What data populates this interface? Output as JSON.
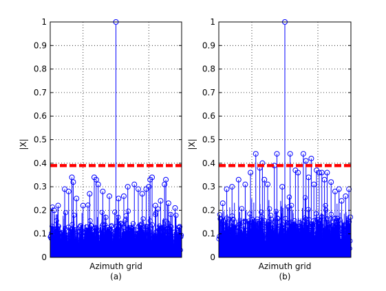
{
  "colors": {
    "stem": "#0000ff",
    "threshold": "#ff0000",
    "axis": "#000000",
    "grid": "#000000"
  },
  "chart_data": [
    {
      "type": "scatter",
      "style": "stem",
      "xlabel": "Azimuth grid",
      "ylabel": "|X|",
      "caption": "(a)",
      "ylim": [
        0,
        1
      ],
      "yticks": [
        "0",
        "0.1",
        "0.2",
        "0.3",
        "0.4",
        "0.5",
        "0.6",
        "0.7",
        "0.8",
        "0.9",
        "1"
      ],
      "grid": true,
      "threshold": 0.39,
      "x_range": [
        0,
        1000
      ],
      "noise_floor": 0.1,
      "peak": {
        "x": 500,
        "y": 1.0
      },
      "stems": [
        {
          "x": 30,
          "y": 0.2
        },
        {
          "x": 60,
          "y": 0.22
        },
        {
          "x": 110,
          "y": 0.29
        },
        {
          "x": 140,
          "y": 0.28
        },
        {
          "x": 165,
          "y": 0.34
        },
        {
          "x": 175,
          "y": 0.32
        },
        {
          "x": 200,
          "y": 0.25
        },
        {
          "x": 250,
          "y": 0.22
        },
        {
          "x": 300,
          "y": 0.27
        },
        {
          "x": 335,
          "y": 0.34
        },
        {
          "x": 350,
          "y": 0.33
        },
        {
          "x": 365,
          "y": 0.31
        },
        {
          "x": 400,
          "y": 0.28
        },
        {
          "x": 450,
          "y": 0.26
        },
        {
          "x": 520,
          "y": 0.25
        },
        {
          "x": 560,
          "y": 0.26
        },
        {
          "x": 590,
          "y": 0.3
        },
        {
          "x": 640,
          "y": 0.31
        },
        {
          "x": 670,
          "y": 0.29
        },
        {
          "x": 700,
          "y": 0.27
        },
        {
          "x": 730,
          "y": 0.29
        },
        {
          "x": 750,
          "y": 0.3
        },
        {
          "x": 760,
          "y": 0.33
        },
        {
          "x": 775,
          "y": 0.34
        },
        {
          "x": 800,
          "y": 0.22
        },
        {
          "x": 840,
          "y": 0.24
        },
        {
          "x": 870,
          "y": 0.31
        },
        {
          "x": 880,
          "y": 0.33
        },
        {
          "x": 900,
          "y": 0.23
        },
        {
          "x": 950,
          "y": 0.21
        },
        {
          "x": 985,
          "y": 0.13
        }
      ]
    },
    {
      "type": "scatter",
      "style": "stem",
      "xlabel": "Azimuth grid",
      "ylabel": "|X|",
      "caption": "(b)",
      "ylim": [
        0,
        1
      ],
      "yticks": [
        "0",
        "0.1",
        "0.2",
        "0.3",
        "0.4",
        "0.5",
        "0.6",
        "0.7",
        "0.8",
        "0.9",
        "1"
      ],
      "grid": true,
      "threshold": 0.39,
      "x_range": [
        0,
        1000
      ],
      "noise_floor": 0.12,
      "peak": {
        "x": 500,
        "y": 1.0
      },
      "stems": [
        {
          "x": 30,
          "y": 0.23
        },
        {
          "x": 60,
          "y": 0.29
        },
        {
          "x": 100,
          "y": 0.3
        },
        {
          "x": 150,
          "y": 0.33
        },
        {
          "x": 200,
          "y": 0.31
        },
        {
          "x": 240,
          "y": 0.36
        },
        {
          "x": 280,
          "y": 0.44
        },
        {
          "x": 310,
          "y": 0.38
        },
        {
          "x": 330,
          "y": 0.4
        },
        {
          "x": 345,
          "y": 0.33
        },
        {
          "x": 370,
          "y": 0.31
        },
        {
          "x": 420,
          "y": 0.39
        },
        {
          "x": 440,
          "y": 0.44
        },
        {
          "x": 480,
          "y": 0.3
        },
        {
          "x": 540,
          "y": 0.44
        },
        {
          "x": 580,
          "y": 0.37
        },
        {
          "x": 600,
          "y": 0.36
        },
        {
          "x": 640,
          "y": 0.44
        },
        {
          "x": 660,
          "y": 0.41
        },
        {
          "x": 680,
          "y": 0.34
        },
        {
          "x": 700,
          "y": 0.42
        },
        {
          "x": 720,
          "y": 0.31
        },
        {
          "x": 740,
          "y": 0.37
        },
        {
          "x": 760,
          "y": 0.36
        },
        {
          "x": 780,
          "y": 0.36
        },
        {
          "x": 800,
          "y": 0.33
        },
        {
          "x": 820,
          "y": 0.36
        },
        {
          "x": 850,
          "y": 0.32
        },
        {
          "x": 880,
          "y": 0.28
        },
        {
          "x": 910,
          "y": 0.29
        },
        {
          "x": 930,
          "y": 0.24
        },
        {
          "x": 960,
          "y": 0.26
        },
        {
          "x": 985,
          "y": 0.29
        }
      ]
    }
  ]
}
